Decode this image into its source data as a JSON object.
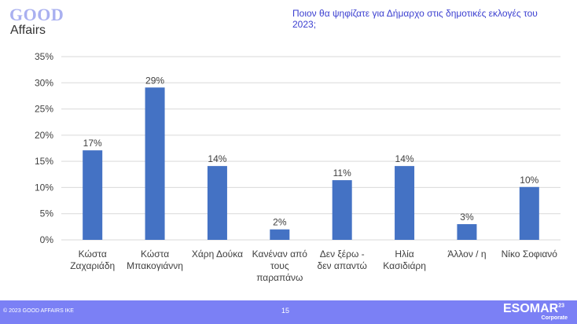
{
  "logo": {
    "line1": "GOOD",
    "line2": "Affairs"
  },
  "title": "Ποιον θα ψηφίζατε για Δήμαρχο στις δημοτικές εκλογές του 2023;",
  "footer": {
    "copyright": "© 2023 GOOD AFFAIRS IKE",
    "page": "15",
    "esomar": "ESOMAR",
    "esomar_sup": "23",
    "esomar_sub": "Corporate"
  },
  "colors": {
    "bar": "#4472c4",
    "title": "#3b3fd0",
    "footer": "#7b80f5"
  },
  "chart_data": {
    "type": "bar",
    "title": "Ποιον θα ψηφίζατε για Δήμαρχο στις δημοτικές εκλογές του 2023;",
    "categories": [
      [
        "Κώστα",
        "Ζαχαριάδη"
      ],
      [
        "Κώστα",
        "Μπακογιάννη"
      ],
      [
        "Χάρη Δούκα"
      ],
      [
        "Κανέναν από",
        "τους",
        "παραπάνω"
      ],
      [
        "Δεν ξέρω -",
        "δεν απαντώ"
      ],
      [
        "Ηλία",
        "Κασιδιάρη"
      ],
      [
        "Άλλον / η"
      ],
      [
        "Νίκο Σοφιανό"
      ]
    ],
    "values": [
      17.1,
      29.1,
      14.1,
      2.0,
      11.4,
      14.1,
      3.0,
      10.1
    ],
    "data_labels": [
      "17%",
      "29%",
      "14%",
      "2%",
      "11%",
      "14%",
      "3%",
      "10%"
    ],
    "yticks": [
      "0%",
      "5%",
      "10%",
      "15%",
      "20%",
      "25%",
      "30%",
      "35%"
    ],
    "ylim": [
      0,
      35
    ],
    "grid": true,
    "legend": "none"
  }
}
